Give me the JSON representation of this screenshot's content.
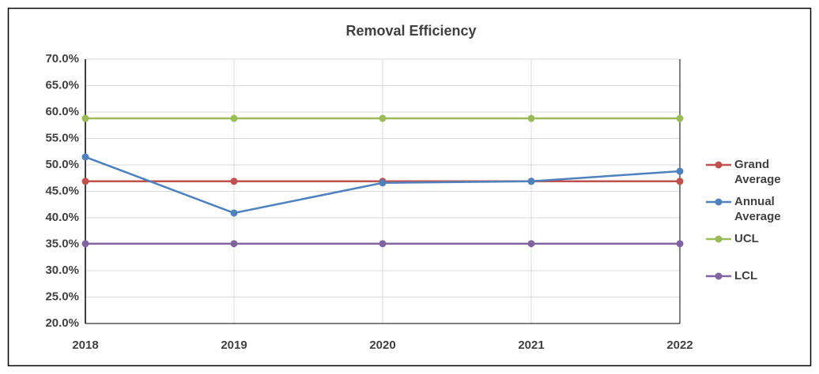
{
  "chart_data": {
    "type": "line",
    "title": "Removal Efficiency",
    "categories": [
      "2018",
      "2019",
      "2020",
      "2021",
      "2022"
    ],
    "series": [
      {
        "name": "Grand Average",
        "color": "#c0504d",
        "values": [
          46.9,
          46.9,
          46.9,
          46.9,
          46.9
        ]
      },
      {
        "name": "Annual Average",
        "color": "#4f81bd",
        "values": [
          51.5,
          40.9,
          46.6,
          46.9,
          48.8
        ]
      },
      {
        "name": "UCL",
        "color": "#9bbb59",
        "values": [
          58.8,
          58.8,
          58.8,
          58.8,
          58.8
        ]
      },
      {
        "name": "LCL",
        "color": "#8064a2",
        "values": [
          35.1,
          35.1,
          35.1,
          35.1,
          35.1
        ]
      }
    ],
    "ylim": [
      20,
      70
    ],
    "yticks": [
      {
        "value": 20,
        "label": "20.0%"
      },
      {
        "value": 25,
        "label": "25.0%"
      },
      {
        "value": 30,
        "label": "30.0%"
      },
      {
        "value": 35,
        "label": "35.0%"
      },
      {
        "value": 40,
        "label": "40.0%"
      },
      {
        "value": 45,
        "label": "45.0%"
      },
      {
        "value": 50,
        "label": "50.0%"
      },
      {
        "value": 55,
        "label": "55.0%"
      },
      {
        "value": 60,
        "label": "60.0%"
      },
      {
        "value": 65,
        "label": "65.0%"
      },
      {
        "value": 70,
        "label": "70.0%"
      }
    ],
    "grid": true,
    "legend": "right"
  }
}
